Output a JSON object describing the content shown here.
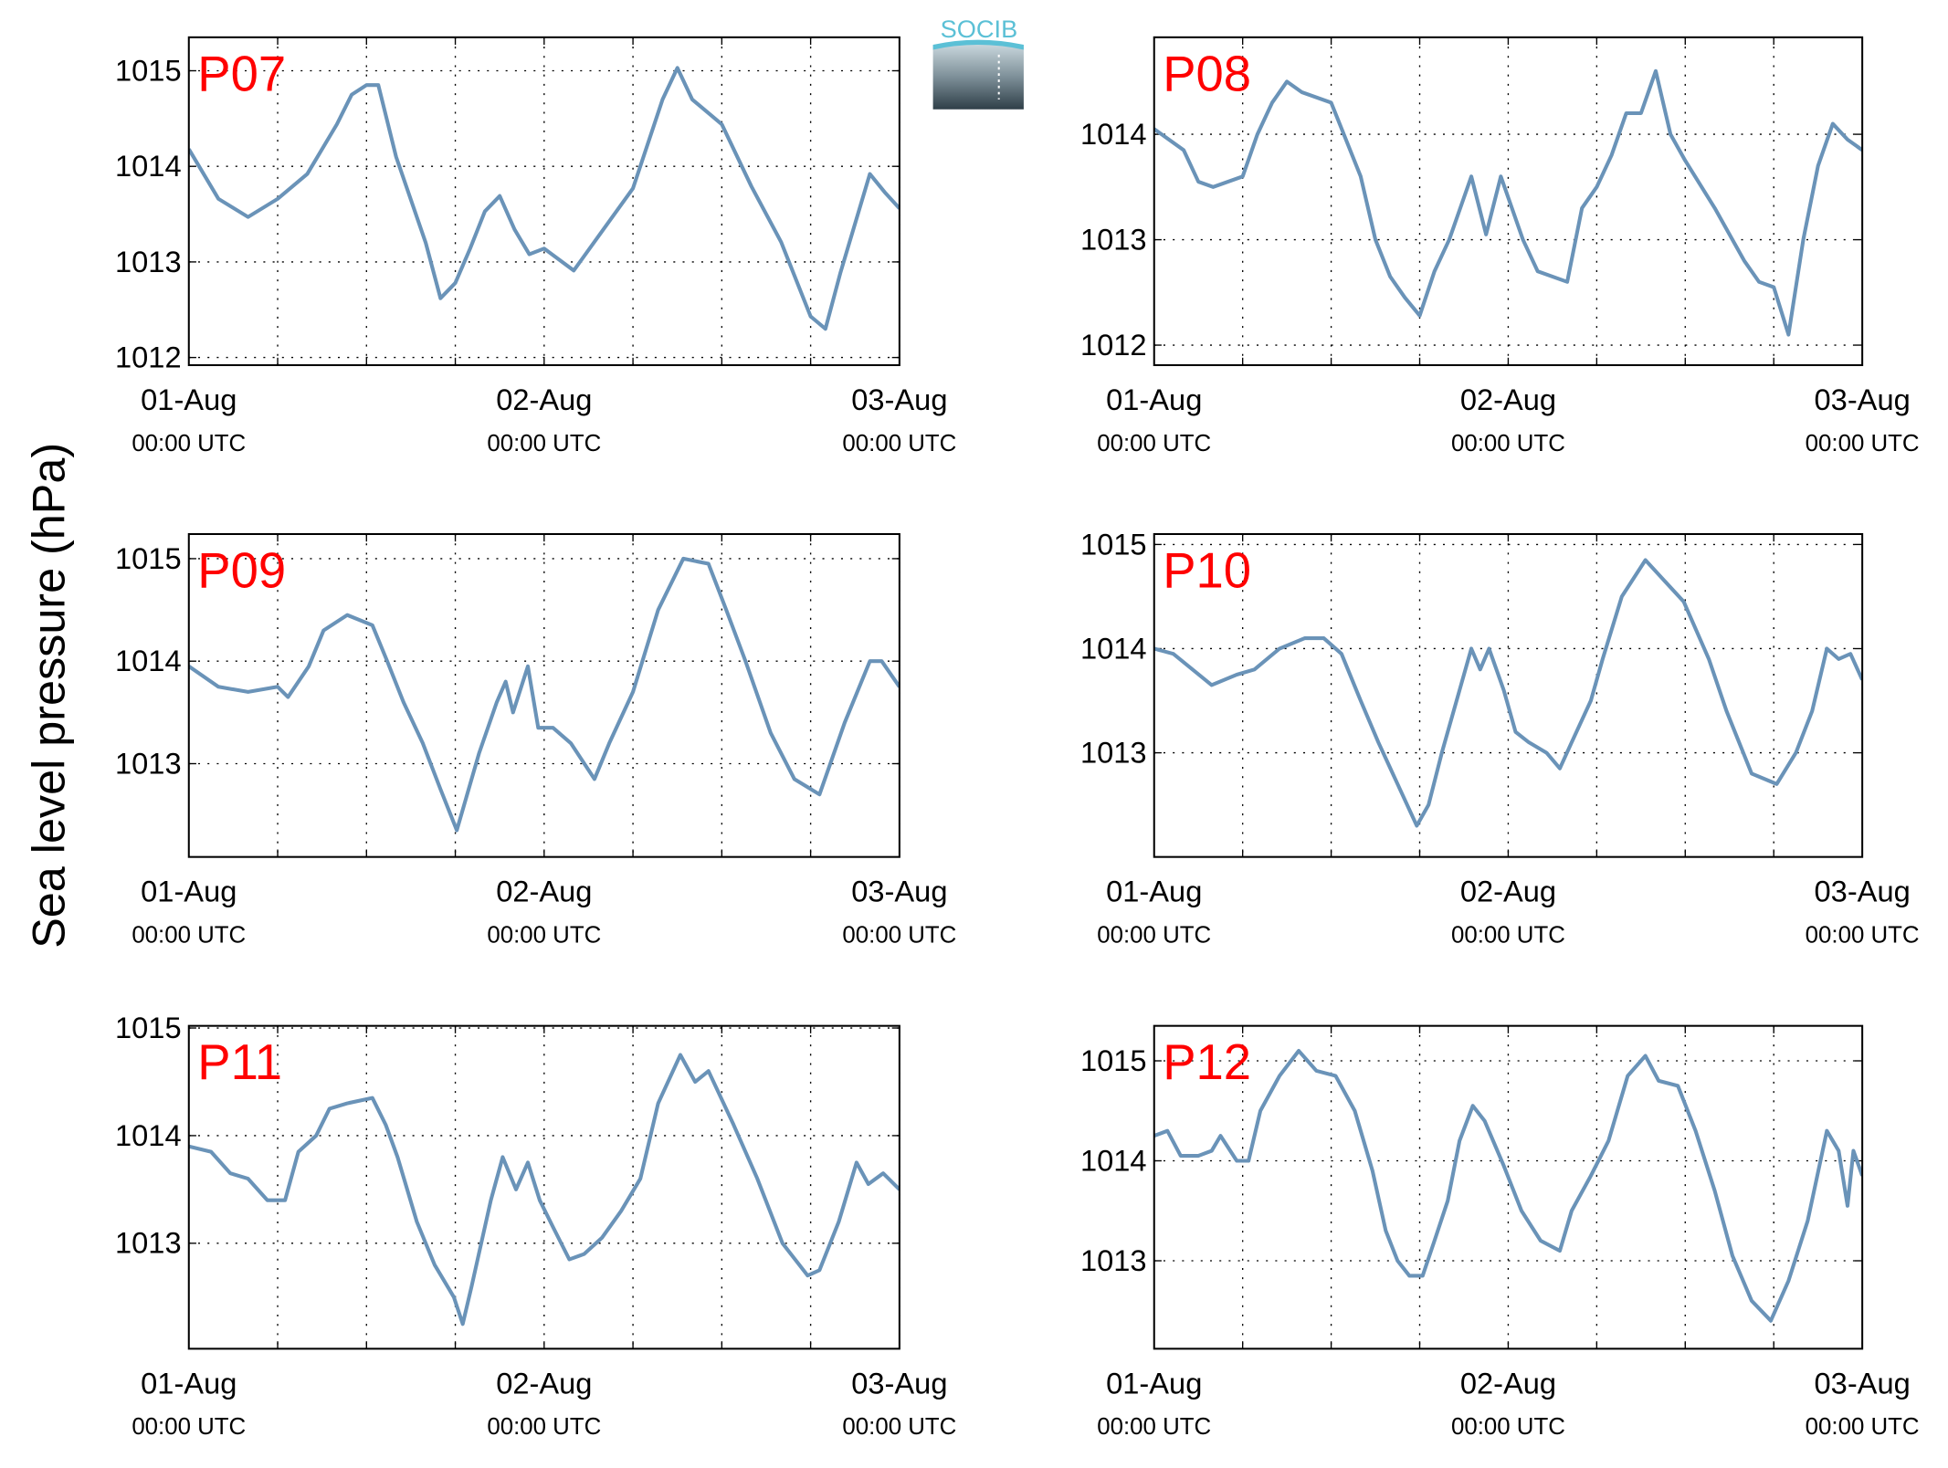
{
  "ylabel": "Sea level pressure (hPa)",
  "logo": "SOCIB",
  "chart_data": [
    {
      "type": "line",
      "title": "P07",
      "color": "#6a93b8",
      "grid": true,
      "xlim": [
        0,
        48
      ],
      "xticks": [
        {
          "value": 0,
          "label": "01-Aug",
          "time": "00:00 UTC"
        },
        {
          "value": 24,
          "label": "02-Aug",
          "time": "00:00 UTC"
        },
        {
          "value": 48,
          "label": "03-Aug",
          "time": "00:00 UTC"
        }
      ],
      "xminor": [
        6,
        12,
        18,
        30,
        36,
        42
      ],
      "ylim": [
        1011.92,
        1015.35
      ],
      "yticks": [
        1012,
        1013,
        1014,
        1015
      ],
      "x": [
        0,
        2,
        4,
        6,
        8,
        10,
        11,
        12,
        12.8,
        14,
        16,
        17,
        18,
        19,
        20,
        21,
        22,
        23,
        24,
        26,
        28,
        30,
        32,
        33,
        34,
        36,
        38,
        40,
        42,
        43,
        44,
        46,
        47,
        48
      ],
      "values": [
        1014.18,
        1013.66,
        1013.47,
        1013.66,
        1013.92,
        1014.44,
        1014.75,
        1014.85,
        1014.85,
        1014.1,
        1013.2,
        1012.62,
        1012.78,
        1013.14,
        1013.53,
        1013.69,
        1013.34,
        1013.08,
        1013.14,
        1012.91,
        1013.34,
        1013.77,
        1014.7,
        1015.03,
        1014.7,
        1014.44,
        1013.79,
        1013.21,
        1012.43,
        1012.3,
        1012.88,
        1013.92,
        1013.73,
        1013.56
      ]
    },
    {
      "type": "line",
      "title": "P08",
      "color": "#6a93b8",
      "grid": true,
      "xlim": [
        0,
        48
      ],
      "xticks": [
        {
          "value": 0,
          "label": "01-Aug",
          "time": "00:00 UTC"
        },
        {
          "value": 24,
          "label": "02-Aug",
          "time": "00:00 UTC"
        },
        {
          "value": 48,
          "label": "03-Aug",
          "time": "00:00 UTC"
        }
      ],
      "xminor": [
        6,
        12,
        18,
        30,
        36,
        42
      ],
      "ylim": [
        1011.81,
        1014.92
      ],
      "yticks": [
        1012,
        1013,
        1014
      ],
      "x": [
        0,
        2,
        3,
        4,
        6,
        7,
        8,
        9,
        10,
        12,
        13,
        14,
        15,
        16,
        17,
        18,
        19,
        20,
        21,
        21.5,
        22.5,
        23.5,
        25,
        26,
        28,
        29,
        30,
        31,
        32,
        33,
        34,
        35,
        36,
        38,
        40,
        41,
        42,
        43,
        44,
        45,
        46,
        47,
        48
      ],
      "values": [
        1014.05,
        1013.85,
        1013.55,
        1013.5,
        1013.6,
        1014.0,
        1014.3,
        1014.5,
        1014.4,
        1014.3,
        1013.95,
        1013.6,
        1013.0,
        1012.65,
        1012.45,
        1012.28,
        1012.7,
        1013.0,
        1013.4,
        1013.6,
        1013.05,
        1013.6,
        1013.0,
        1012.7,
        1012.6,
        1013.3,
        1013.5,
        1013.8,
        1014.2,
        1014.2,
        1014.6,
        1014.0,
        1013.75,
        1013.3,
        1012.8,
        1012.6,
        1012.55,
        1012.1,
        1013.0,
        1013.7,
        1014.1,
        1013.95,
        1013.85
      ]
    },
    {
      "type": "line",
      "title": "P09",
      "color": "#6a93b8",
      "grid": true,
      "xlim": [
        0,
        48
      ],
      "xticks": [
        {
          "value": 0,
          "label": "01-Aug",
          "time": "00:00 UTC"
        },
        {
          "value": 24,
          "label": "02-Aug",
          "time": "00:00 UTC"
        },
        {
          "value": 48,
          "label": "03-Aug",
          "time": "00:00 UTC"
        }
      ],
      "xminor": [
        6,
        12,
        18,
        30,
        36,
        42
      ],
      "ylim": [
        1012.09,
        1015.24
      ],
      "yticks": [
        1013,
        1014,
        1015
      ],
      "x": [
        0,
        2,
        4,
        6,
        6.7,
        8.1,
        9.1,
        10.7,
        12.4,
        13.4,
        14.5,
        15.8,
        17,
        18.1,
        19.6,
        20.8,
        21.4,
        21.9,
        22.9,
        23.6,
        24.6,
        25.8,
        27.4,
        28.4,
        30,
        31.7,
        33.4,
        35.1,
        36.3,
        37.6,
        39.3,
        40.9,
        42.6,
        44.3,
        46,
        46.8,
        48
      ],
      "values": [
        1013.95,
        1013.75,
        1013.7,
        1013.75,
        1013.65,
        1013.95,
        1014.3,
        1014.45,
        1014.35,
        1014.0,
        1013.6,
        1013.2,
        1012.75,
        1012.35,
        1013.1,
        1013.6,
        1013.8,
        1013.5,
        1013.95,
        1013.35,
        1013.35,
        1013.2,
        1012.85,
        1013.2,
        1013.7,
        1014.5,
        1015.0,
        1014.95,
        1014.5,
        1014.0,
        1013.3,
        1012.85,
        1012.7,
        1013.4,
        1014.0,
        1014.0,
        1013.75
      ]
    },
    {
      "type": "line",
      "title": "P10",
      "color": "#6a93b8",
      "grid": true,
      "xlim": [
        0,
        48
      ],
      "xticks": [
        {
          "value": 0,
          "label": "01-Aug",
          "time": "00:00 UTC"
        },
        {
          "value": 24,
          "label": "02-Aug",
          "time": "00:00 UTC"
        },
        {
          "value": 48,
          "label": "03-Aug",
          "time": "00:00 UTC"
        }
      ],
      "xminor": [
        6,
        12,
        18,
        30,
        36,
        42
      ],
      "ylim": [
        1012.0,
        1015.1
      ],
      "yticks": [
        1013,
        1014,
        1015
      ],
      "x": [
        0,
        1.3,
        2.6,
        3.9,
        5.6,
        6.8,
        8.5,
        10.2,
        11.5,
        12.7,
        14.0,
        15.2,
        16.5,
        17.8,
        18.6,
        19.5,
        20.7,
        21.5,
        22.1,
        22.7,
        23.7,
        24.5,
        25.4,
        26.6,
        27.5,
        28.3,
        29.6,
        30.4,
        31.7,
        33.3,
        34.6,
        35.9,
        37.6,
        38.8,
        40.5,
        42.2,
        43.5,
        44.6,
        45.6,
        46.4,
        47.2,
        48
      ],
      "values": [
        1014.0,
        1013.95,
        1013.8,
        1013.65,
        1013.75,
        1013.8,
        1014.0,
        1014.1,
        1014.1,
        1013.95,
        1013.5,
        1013.1,
        1012.7,
        1012.3,
        1012.5,
        1013.0,
        1013.6,
        1014.0,
        1013.8,
        1014.0,
        1013.6,
        1013.2,
        1013.1,
        1013.0,
        1012.85,
        1013.1,
        1013.5,
        1013.9,
        1014.5,
        1014.85,
        1014.65,
        1014.45,
        1013.9,
        1013.4,
        1012.8,
        1012.7,
        1013.0,
        1013.4,
        1014.0,
        1013.9,
        1013.95,
        1013.7
      ]
    },
    {
      "type": "line",
      "title": "P11",
      "color": "#6a93b8",
      "grid": true,
      "xlim": [
        0,
        48
      ],
      "xticks": [
        {
          "value": 0,
          "label": "01-Aug",
          "time": "00:00 UTC"
        },
        {
          "value": 24,
          "label": "02-Aug",
          "time": "00:00 UTC"
        },
        {
          "value": 48,
          "label": "03-Aug",
          "time": "00:00 UTC"
        }
      ],
      "xminor": [
        6,
        12,
        18,
        30,
        36,
        42
      ],
      "ylim": [
        1012.02,
        1015.02
      ],
      "yticks": [
        1013,
        1014,
        1015
      ],
      "x": [
        0,
        1.5,
        2.8,
        4.0,
        5.3,
        6.5,
        7.4,
        8.6,
        9.5,
        10.7,
        12.4,
        13.3,
        14.1,
        15.4,
        16.6,
        17.9,
        18.5,
        19.1,
        20.4,
        21.2,
        22.1,
        22.9,
        23.7,
        24.6,
        25.7,
        26.7,
        27.9,
        29.2,
        30.5,
        31.7,
        33.2,
        34.2,
        35.1,
        36.8,
        38.4,
        40.1,
        41.8,
        42.6,
        43.9,
        45.1,
        45.9,
        46.9,
        48
      ],
      "values": [
        1013.9,
        1013.85,
        1013.65,
        1013.6,
        1013.4,
        1013.4,
        1013.85,
        1014.0,
        1014.25,
        1014.3,
        1014.35,
        1014.1,
        1013.8,
        1013.2,
        1012.8,
        1012.5,
        1012.25,
        1012.6,
        1013.4,
        1013.8,
        1013.5,
        1013.75,
        1013.4,
        1013.15,
        1012.85,
        1012.9,
        1013.05,
        1013.3,
        1013.6,
        1014.3,
        1014.75,
        1014.5,
        1014.6,
        1014.1,
        1013.6,
        1013.0,
        1012.7,
        1012.75,
        1013.2,
        1013.75,
        1013.55,
        1013.65,
        1013.5
      ]
    },
    {
      "type": "line",
      "title": "P12",
      "color": "#6a93b8",
      "grid": true,
      "xlim": [
        0,
        48
      ],
      "xticks": [
        {
          "value": 0,
          "label": "01-Aug",
          "time": "00:00 UTC"
        },
        {
          "value": 24,
          "label": "02-Aug",
          "time": "00:00 UTC"
        },
        {
          "value": 48,
          "label": "03-Aug",
          "time": "00:00 UTC"
        }
      ],
      "xminor": [
        6,
        12,
        18,
        30,
        36,
        42
      ],
      "ylim": [
        1012.12,
        1015.35
      ],
      "yticks": [
        1013,
        1014,
        1015
      ],
      "x": [
        0,
        0.9,
        1.8,
        3.0,
        3.9,
        4.5,
        5.6,
        6.4,
        7.2,
        8.5,
        9.8,
        11.0,
        12.3,
        13.6,
        14.8,
        15.7,
        16.5,
        17.3,
        18.2,
        19.0,
        19.9,
        20.7,
        21.6,
        22.4,
        23.7,
        24.9,
        26.2,
        27.5,
        28.3,
        29.6,
        30.8,
        32.1,
        33.3,
        34.2,
        35.5,
        36.7,
        38.0,
        39.2,
        40.5,
        41.8,
        43.0,
        44.3,
        45.6,
        46.4,
        47.0,
        47.4,
        48
      ],
      "values": [
        1014.25,
        1014.3,
        1014.05,
        1014.05,
        1014.1,
        1014.25,
        1014.0,
        1014.0,
        1014.5,
        1014.85,
        1015.1,
        1014.9,
        1014.85,
        1014.5,
        1013.9,
        1013.3,
        1013.0,
        1012.85,
        1012.85,
        1013.2,
        1013.6,
        1014.2,
        1014.55,
        1014.4,
        1013.95,
        1013.5,
        1013.2,
        1013.1,
        1013.5,
        1013.85,
        1014.2,
        1014.85,
        1015.05,
        1014.8,
        1014.75,
        1014.3,
        1013.7,
        1013.05,
        1012.6,
        1012.4,
        1012.8,
        1013.4,
        1014.3,
        1014.1,
        1013.55,
        1014.1,
        1013.85
      ]
    }
  ]
}
